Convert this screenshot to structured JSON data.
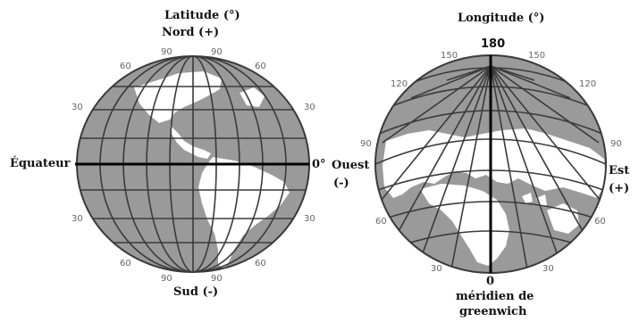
{
  "left_globe": {
    "title": "Latitude (°)",
    "north": "Nord (+)",
    "south": "Sud (-)",
    "equator": "Équateur",
    "zero": "0°",
    "west": "Ouest",
    "west_sign": "(-)",
    "ticks": {
      "top_90": "90",
      "top_60_left": "60",
      "top_60_right": "60",
      "mid_30_left": "30",
      "mid_30_right": "30",
      "low_30_left": "30",
      "low_30_right": "30",
      "bot_60_left": "60",
      "bot_60_right": "60",
      "bot_90_left": "90",
      "bot_90_right": "90"
    }
  },
  "right_globe": {
    "title": "Longitude (°)",
    "top_180": "180",
    "zero": "0",
    "meridian_line1": "méridien de",
    "meridian_line2": "greenwich",
    "east": "Est",
    "east_sign": "(+)",
    "ticks": {
      "t150_left": "150",
      "t150_right": "150",
      "t120_left": "120",
      "t120_right": "120",
      "t90_left": "90",
      "t90_right": "90",
      "t60_left": "60",
      "t60_right": "60",
      "t30_left": "30",
      "t30_right": "30"
    }
  },
  "colors": {
    "ocean": "#9a9a9a",
    "land": "#ffffff",
    "grid": "#3a3a3a",
    "axis": "#000000"
  }
}
